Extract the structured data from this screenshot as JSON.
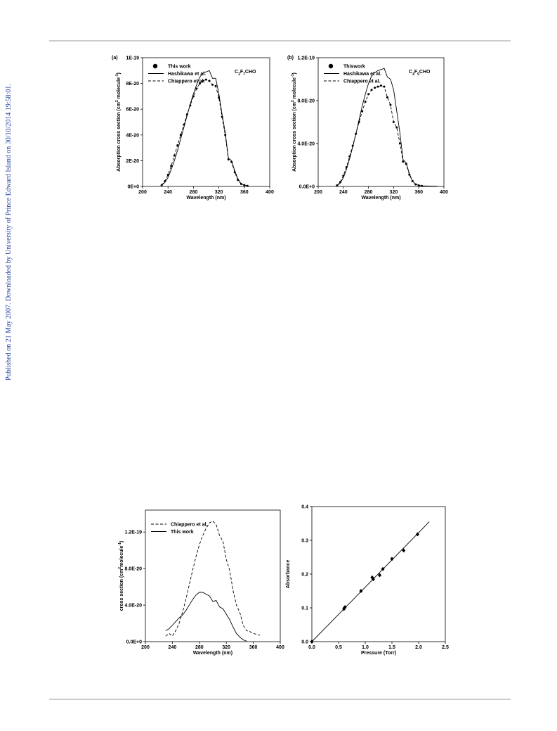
{
  "side_note": "Published on 21 May 2007. Downloaded by University of Prince Edward Island on 30/10/2014 19:58:01.",
  "chart_data": [
    {
      "type": "line",
      "panel_label": "(a)",
      "annotation": [
        "C",
        "3",
        "F",
        "7",
        "CHO"
      ],
      "x_label": "Wavelength (nm)",
      "y_label": [
        "Absorption cross section (cm",
        "2",
        " molecule",
        "-1",
        ")"
      ],
      "xlim": [
        200,
        400
      ],
      "xticks": [
        200,
        240,
        280,
        320,
        360,
        400
      ],
      "ylim": [
        0,
        1e-19
      ],
      "yticks": [
        {
          "value": 0,
          "label": "0E+0"
        },
        {
          "value": 2e-20,
          "label": "2E-20"
        },
        {
          "value": 4e-20,
          "label": "4E-20"
        },
        {
          "value": 6e-20,
          "label": "6E-20"
        },
        {
          "value": 8e-20,
          "label": "8E-20"
        },
        {
          "value": 1e-19,
          "label": "1E-19"
        }
      ],
      "legend": "upper left",
      "series": [
        {
          "name": "This work",
          "color": "#000000",
          "style": "dots",
          "x": [
            230,
            235,
            240,
            245,
            250,
            255,
            260,
            265,
            270,
            275,
            280,
            285,
            290,
            295,
            300,
            305,
            310,
            315,
            320,
            325,
            330,
            335,
            340,
            345,
            350,
            355,
            360,
            365
          ],
          "values": [
            1e-21,
            4e-21,
            9e-21,
            1.6e-20,
            2.4e-20,
            3.2e-20,
            4e-20,
            4.8e-20,
            5.6e-20,
            6.3e-20,
            7e-20,
            7.6e-20,
            8e-20,
            8.2e-20,
            8.3e-20,
            8.2e-20,
            7.9e-20,
            7.8e-20,
            6.9e-20,
            5.4e-20,
            4e-20,
            2.1e-20,
            1.9e-20,
            1.1e-20,
            5e-21,
            2e-21,
            1e-21,
            5e-22
          ]
        },
        {
          "name": "Hashikawa et al.",
          "color": "#000000",
          "style": "solid",
          "x": [
            230,
            235,
            240,
            245,
            250,
            255,
            260,
            265,
            270,
            275,
            280,
            285,
            290,
            295,
            300,
            305,
            310,
            315,
            320,
            325,
            330,
            335,
            340,
            345,
            350,
            355,
            360,
            365
          ],
          "values": [
            1e-21,
            3e-21,
            7e-21,
            1.3e-20,
            2e-20,
            2.8e-20,
            3.7e-20,
            4.6e-20,
            5.5e-20,
            6.4e-20,
            7.2e-20,
            7.9e-20,
            8.5e-20,
            8.8e-20,
            8.9e-20,
            9e-20,
            8.4e-20,
            8.4e-20,
            7.2e-20,
            5.6e-20,
            4.2e-20,
            2.2e-20,
            2e-20,
            1.2e-20,
            6e-21,
            2e-21,
            1e-21,
            5e-22
          ]
        },
        {
          "name": "Chiappero et al.",
          "color": "#000000",
          "style": "dashed",
          "x": [
            230,
            235,
            240,
            245,
            250,
            255,
            260,
            265,
            270,
            275,
            280,
            285,
            290,
            295,
            300,
            305,
            310,
            315,
            320,
            325,
            330,
            335,
            340,
            345,
            350,
            355,
            360,
            365
          ],
          "values": [
            1e-21,
            4e-21,
            9e-21,
            1.6e-20,
            2.4e-20,
            3.2e-20,
            4e-20,
            4.8e-20,
            5.6e-20,
            6.3e-20,
            7e-20,
            7.6e-20,
            8e-20,
            8.2e-20,
            8.3e-20,
            8.2e-20,
            7.9e-20,
            7.8e-20,
            6.9e-20,
            5.4e-20,
            4e-20,
            2.1e-20,
            1.9e-20,
            1.1e-20,
            5e-21,
            2e-21,
            1e-21,
            5e-22
          ]
        }
      ]
    },
    {
      "type": "line",
      "panel_label": "(b)",
      "annotation": [
        "C",
        "4",
        "F",
        "9",
        "CHO"
      ],
      "x_label": "Wavelength (nm)",
      "y_label": [
        "Absorption cross section (cm",
        "2",
        " molecule",
        "-1",
        ")"
      ],
      "xlim": [
        200,
        400
      ],
      "xticks": [
        200,
        240,
        280,
        320,
        360,
        400
      ],
      "ylim": [
        0,
        1.2e-19
      ],
      "yticks": [
        {
          "value": 0,
          "label": "0.0E+0"
        },
        {
          "value": 4e-20,
          "label": "4.0E-20"
        },
        {
          "value": 8e-20,
          "label": "8.0E-20"
        },
        {
          "value": 1.2e-19,
          "label": "1.2E-19"
        }
      ],
      "legend": "upper left",
      "series": [
        {
          "name": "Thiswork",
          "color": "#000000",
          "style": "dots",
          "x": [
            230,
            235,
            240,
            245,
            250,
            255,
            260,
            265,
            270,
            275,
            280,
            285,
            290,
            295,
            300,
            305,
            310,
            315,
            320,
            325,
            330,
            335,
            340,
            345,
            350,
            355,
            360,
            365
          ],
          "values": [
            1e-21,
            4e-21,
            1e-20,
            1.8e-20,
            2.8e-20,
            3.8e-20,
            4.9e-20,
            6e-20,
            7e-20,
            7.9e-20,
            8.6e-20,
            9e-20,
            9.2e-20,
            9.3e-20,
            9.4e-20,
            9.3e-20,
            8.3e-20,
            7.6e-20,
            6e-20,
            5.5e-20,
            4e-20,
            2.3e-20,
            2.1e-20,
            1.1e-20,
            5e-21,
            2e-21,
            1e-21,
            5e-22
          ]
        },
        {
          "name": "Hashikawa et al.",
          "color": "#000000",
          "style": "solid",
          "x": [
            230,
            235,
            240,
            245,
            250,
            255,
            260,
            265,
            270,
            275,
            280,
            285,
            290,
            295,
            300,
            305,
            310,
            315,
            320,
            325,
            330,
            335,
            340,
            345,
            350,
            355,
            360,
            365,
            390
          ],
          "values": [
            1e-21,
            3e-21,
            8e-21,
            1.6e-20,
            2.6e-20,
            3.7e-20,
            4.9e-20,
            6.2e-20,
            7.5e-20,
            8.6e-20,
            9.6e-20,
            1.03e-19,
            1.06e-19,
            1.08e-19,
            1.09e-19,
            1.1e-19,
            1.02e-19,
            1e-19,
            9e-20,
            7e-20,
            5e-20,
            2.5e-20,
            2.2e-20,
            1.2e-20,
            5e-21,
            2e-21,
            1e-21,
            5e-22,
            2e-22
          ]
        },
        {
          "name": "Chiappero et al.",
          "color": "#000000",
          "style": "dashed",
          "x": [
            230,
            235,
            240,
            245,
            250,
            255,
            260,
            265,
            270,
            275,
            280,
            285,
            290,
            295,
            300,
            305,
            310,
            315,
            320,
            325,
            330,
            335,
            340,
            345,
            350,
            355,
            360,
            365
          ],
          "values": [
            1e-21,
            4e-21,
            1e-20,
            1.8e-20,
            2.8e-20,
            3.8e-20,
            4.9e-20,
            6e-20,
            7e-20,
            7.9e-20,
            8.6e-20,
            9e-20,
            9.2e-20,
            9.3e-20,
            9.4e-20,
            9.3e-20,
            8.3e-20,
            7.6e-20,
            6e-20,
            5.5e-20,
            4e-20,
            2.3e-20,
            2.1e-20,
            1.1e-20,
            5e-21,
            2e-21,
            1e-21,
            5e-22
          ]
        }
      ]
    },
    {
      "type": "line",
      "x_label": "Wavelength (nm)",
      "y_label": [
        "cross section (cm",
        "2",
        "molecule",
        "-1",
        ")"
      ],
      "xlim": [
        200,
        400
      ],
      "xticks": [
        200,
        240,
        280,
        320,
        360,
        400
      ],
      "ylim": [
        0,
        1.44e-19
      ],
      "yticks": [
        {
          "value": 0,
          "label": "0.0E+0"
        },
        {
          "value": 4e-20,
          "label": "4.0E-20"
        },
        {
          "value": 8e-20,
          "label": "8.0E-20"
        },
        {
          "value": 1.2e-19,
          "label": "1.2E-19"
        }
      ],
      "legend": "upper left",
      "series": [
        {
          "name": "Chiappero et al.",
          "color": "#000000",
          "style": "dashed",
          "x": [
            230,
            235,
            240,
            245,
            250,
            255,
            260,
            265,
            270,
            275,
            280,
            285,
            290,
            295,
            300,
            305,
            310,
            315,
            320,
            325,
            330,
            335,
            340,
            345,
            350,
            355,
            360,
            365,
            370
          ],
          "values": [
            6e-21,
            9e-21,
            6e-21,
            1.2e-20,
            2e-20,
            3.2e-20,
            4.6e-20,
            6.2e-20,
            7.8e-20,
            9.3e-20,
            1.06e-19,
            1.16e-19,
            1.24e-19,
            1.3e-19,
            1.32e-19,
            1.28e-19,
            1.16e-19,
            1.1e-19,
            9e-20,
            7.8e-20,
            5.6e-20,
            4e-20,
            3.2e-20,
            1.8e-20,
            1.2e-20,
            1.1e-20,
            9e-21,
            8e-21,
            7e-21
          ]
        },
        {
          "name": "This work",
          "color": "#000000",
          "style": "solid",
          "x": [
            230,
            235,
            240,
            245,
            250,
            255,
            260,
            265,
            270,
            275,
            280,
            285,
            290,
            295,
            300,
            305,
            310,
            315,
            320,
            325,
            330,
            335,
            340,
            345,
            350
          ],
          "values": [
            1.2e-20,
            1.4e-20,
            1.8e-20,
            2.2e-20,
            2.6e-20,
            2.9e-20,
            3.4e-20,
            4e-20,
            4.6e-20,
            5.1e-20,
            5.4e-20,
            5.4e-20,
            5.2e-20,
            5e-20,
            4.4e-20,
            4.5e-20,
            3.8e-20,
            3.6e-20,
            3e-20,
            2.4e-20,
            1.6e-20,
            9e-21,
            5e-21,
            2e-21,
            5e-22
          ]
        }
      ]
    },
    {
      "type": "scatter",
      "x_label": "Pressure (Torr)",
      "y_label": [
        "Absorbance"
      ],
      "xlim": [
        0,
        2.5
      ],
      "xticks": [
        {
          "value": 0,
          "label": "0.0"
        },
        {
          "value": 0.5,
          "label": "0.5"
        },
        {
          "value": 1,
          "label": "1.0"
        },
        {
          "value": 1.5,
          "label": "1.5"
        },
        {
          "value": 2,
          "label": "2.0"
        },
        {
          "value": 2.5,
          "label": "2.5"
        }
      ],
      "ylim": [
        0,
        0.4
      ],
      "yticks": [
        {
          "value": 0,
          "label": "0.0"
        },
        0.1,
        0.2,
        0.3,
        0.4
      ],
      "series": [
        {
          "color": "#000000",
          "style": "diamonds",
          "x": [
            0,
            0.6,
            0.61,
            0.62,
            0.92,
            1.13,
            1.15,
            1.27,
            1.33,
            1.5,
            1.72,
            1.98
          ],
          "values": [
            0,
            0.097,
            0.1,
            0.102,
            0.15,
            0.19,
            0.185,
            0.197,
            0.215,
            0.245,
            0.27,
            0.318
          ]
        },
        {
          "color": "#000000",
          "style": "solid",
          "x": [
            0,
            2.2
          ],
          "values": [
            0,
            0.355
          ]
        }
      ]
    }
  ]
}
